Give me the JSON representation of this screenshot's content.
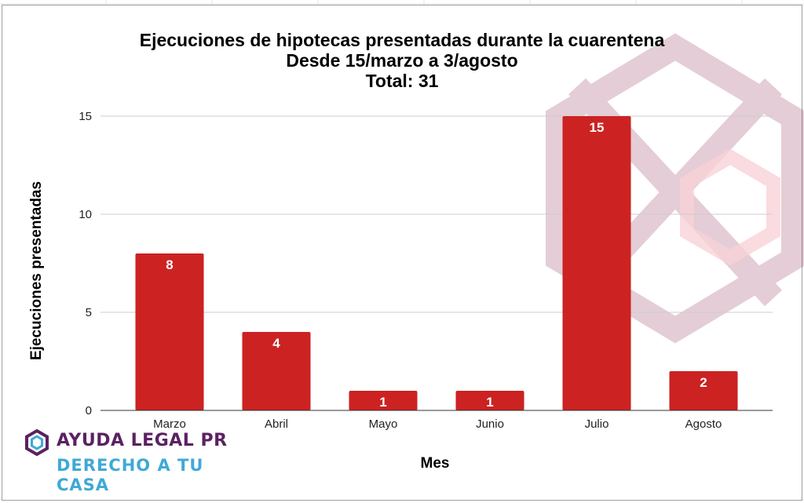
{
  "chart_data": {
    "type": "bar",
    "title_lines": [
      "Ejecuciones de hipotecas presentadas durante la cuarentena",
      "Desde 15/marzo a 3/agosto",
      "Total: 31"
    ],
    "categories": [
      "Marzo",
      "Abril",
      "Mayo",
      "Junio",
      "Julio",
      "Agosto"
    ],
    "values": [
      8,
      4,
      1,
      1,
      15,
      2
    ],
    "data_labels": [
      "8",
      "4",
      "1",
      "1",
      "15",
      "2"
    ],
    "xlabel": "Mes",
    "ylabel": "Ejecuciones presentadas",
    "ylim": [
      0,
      15
    ],
    "yticks": [
      0,
      5,
      10,
      15
    ],
    "ytick_labels": [
      "0",
      "5",
      "10",
      "15"
    ],
    "grid": true,
    "legend": "none",
    "bar_color": "#cc2222"
  },
  "branding": {
    "line1": "AYUDA LEGAL PR",
    "line2": "DERECHO A TU",
    "line3": "CASA",
    "color_primary": "#5b2161",
    "color_secondary": "#3fa9d6",
    "icon": "hexagon-logo-icon",
    "watermark": "hexagon-star-watermark-icon"
  }
}
